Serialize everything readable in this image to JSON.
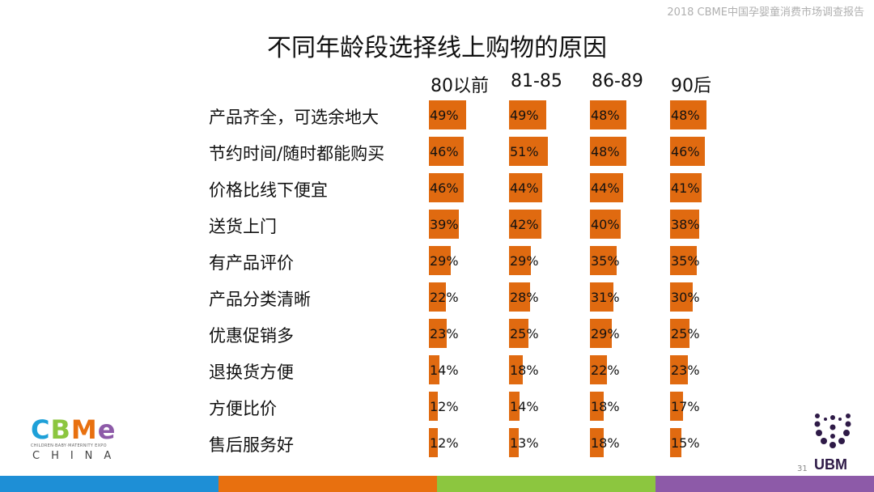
{
  "header": {
    "text": "2018 CBME中国孕婴童消费市场调查报告"
  },
  "page_number": "31",
  "logo": {
    "brand": "CBME",
    "tagline": "CHILDREN·BABY·MATERNITY EXPO",
    "country": "CHINA"
  },
  "ubm": {
    "label": "UBM"
  },
  "footer": {
    "colors": [
      "#1e8fd6",
      "#e8700f",
      "#8cc63f",
      "#8d5aa8"
    ]
  },
  "chart_data": {
    "type": "bar",
    "title": "不同年龄段选择线上购物的原因",
    "orientation": "horizontal",
    "bar_color": "#e06a10",
    "categories": [
      "产品齐全，可选余地大",
      "节约时间/随时都能购买",
      "价格比线下便宜",
      "送货上门",
      "有产品评价",
      "产品分类清晰",
      "优惠促销多",
      "退换货方便",
      "方便比价",
      "售后服务好"
    ],
    "series": [
      {
        "name": "80以前",
        "values": [
          49,
          46,
          46,
          39,
          29,
          22,
          23,
          14,
          12,
          12
        ],
        "labels": [
          "49%",
          "46%",
          "46%",
          "39%",
          "29%",
          "22%",
          "23%",
          "14%",
          "12%",
          "12%"
        ]
      },
      {
        "name": "81-85",
        "values": [
          49,
          51,
          44,
          42,
          29,
          28,
          25,
          18,
          14,
          13
        ],
        "labels": [
          "49%",
          "51%",
          "44%",
          "42%",
          "29%",
          "28%",
          "25%",
          "18%",
          "14%",
          "13%"
        ]
      },
      {
        "name": "86-89",
        "values": [
          48,
          48,
          44,
          40,
          35,
          31,
          29,
          22,
          18,
          18
        ],
        "labels": [
          "48%",
          "48%",
          "44%",
          "40%",
          "35%",
          "31%",
          "29%",
          "22%",
          "18%",
          "18%"
        ]
      },
      {
        "name": "90后",
        "values": [
          48,
          46,
          41,
          38,
          35,
          30,
          25,
          23,
          17,
          15
        ],
        "labels": [
          "48%",
          "46%",
          "41%",
          "38%",
          "35%",
          "30%",
          "25%",
          "23%",
          "17%",
          "15%"
        ]
      }
    ]
  }
}
